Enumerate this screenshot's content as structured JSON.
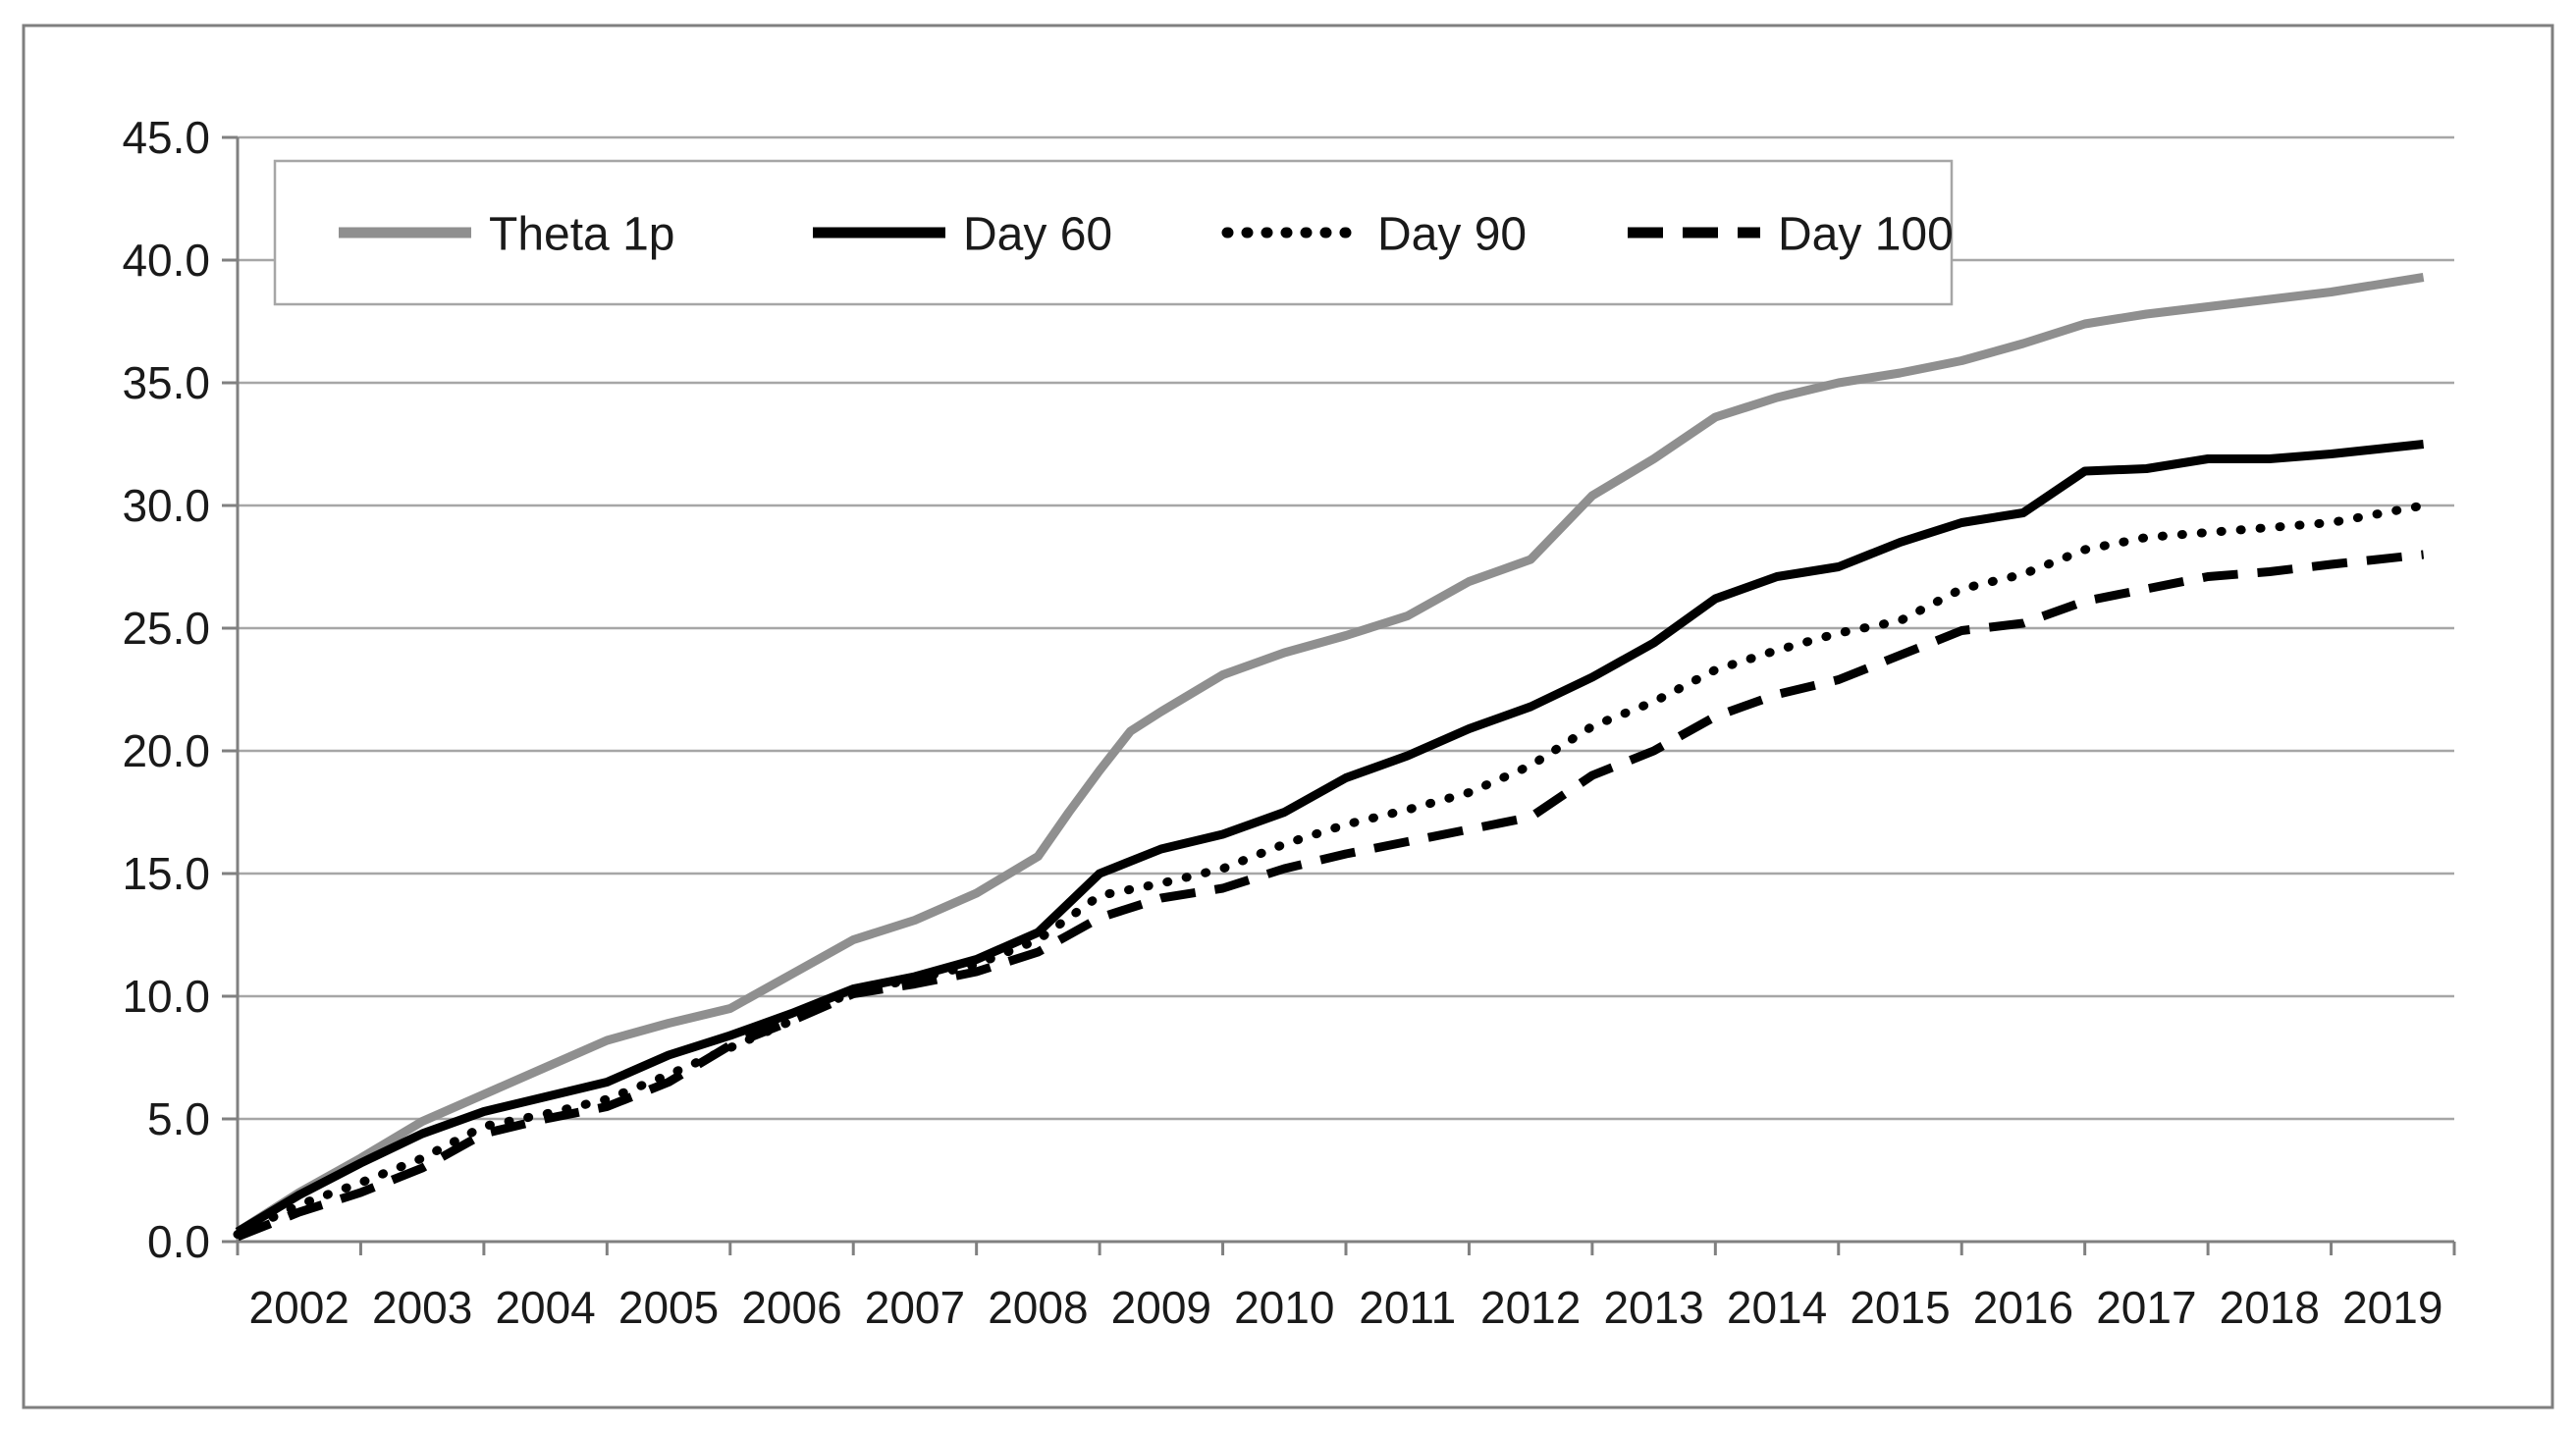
{
  "figure": {
    "background": "#ffffff",
    "border_color": "#7f7f7f"
  },
  "chart_data": {
    "type": "line",
    "title": "",
    "grid": "horizontal",
    "colors": {
      "gridline": "#a6a6a6",
      "axis": "#808080",
      "tick_text": "#1a1a1a",
      "legend_border": "#a6a6a6",
      "series_gray": "#8f8f8f",
      "series_black": "#000000"
    },
    "y_axis": {
      "min": 0,
      "max": 45,
      "step": 5,
      "labels": [
        "0.0",
        "5.0",
        "10.0",
        "15.0",
        "20.0",
        "25.0",
        "30.0",
        "35.0",
        "40.0",
        "45.0"
      ]
    },
    "x_axis": {
      "min": 2002,
      "max": 2020,
      "tick_step": 1,
      "labels": [
        "2002",
        "2003",
        "2004",
        "2005",
        "2006",
        "2007",
        "2008",
        "2009",
        "2010",
        "2011",
        "2012",
        "2013",
        "2014",
        "2015",
        "2016",
        "2017",
        "2018",
        "2019"
      ]
    },
    "legend": {
      "position": "top-left-inside",
      "entries": [
        "Theta 1p",
        "Day 60",
        "Day 90",
        "Day 100"
      ]
    },
    "series": [
      {
        "name": "Theta 1p",
        "color": "#8f8f8f",
        "line_style": "solid",
        "points": [
          [
            2002.0,
            0.4
          ],
          [
            2002.5,
            2.0
          ],
          [
            2003.0,
            3.4
          ],
          [
            2003.5,
            4.9
          ],
          [
            2004.0,
            6.0
          ],
          [
            2004.5,
            7.1
          ],
          [
            2005.0,
            8.2
          ],
          [
            2005.5,
            8.9
          ],
          [
            2006.0,
            9.5
          ],
          [
            2006.5,
            10.9
          ],
          [
            2007.0,
            12.3
          ],
          [
            2007.5,
            13.1
          ],
          [
            2008.0,
            14.2
          ],
          [
            2008.5,
            15.7
          ],
          [
            2008.75,
            17.5
          ],
          [
            2009.0,
            19.2
          ],
          [
            2009.25,
            20.8
          ],
          [
            2009.5,
            21.6
          ],
          [
            2010.0,
            23.1
          ],
          [
            2010.5,
            24.0
          ],
          [
            2011.0,
            24.7
          ],
          [
            2011.5,
            25.5
          ],
          [
            2012.0,
            26.9
          ],
          [
            2012.5,
            27.8
          ],
          [
            2013.0,
            30.4
          ],
          [
            2013.5,
            31.9
          ],
          [
            2014.0,
            33.6
          ],
          [
            2014.5,
            34.4
          ],
          [
            2015.0,
            35.0
          ],
          [
            2015.5,
            35.4
          ],
          [
            2016.0,
            35.9
          ],
          [
            2016.5,
            36.6
          ],
          [
            2017.0,
            37.4
          ],
          [
            2017.5,
            37.8
          ],
          [
            2018.0,
            38.1
          ],
          [
            2018.5,
            38.4
          ],
          [
            2019.0,
            38.7
          ],
          [
            2019.75,
            39.3
          ]
        ]
      },
      {
        "name": "Day 60",
        "color": "#000000",
        "line_style": "solid",
        "points": [
          [
            2002.0,
            0.4
          ],
          [
            2002.5,
            1.9
          ],
          [
            2003.0,
            3.2
          ],
          [
            2003.5,
            4.4
          ],
          [
            2004.0,
            5.3
          ],
          [
            2004.5,
            5.9
          ],
          [
            2005.0,
            6.5
          ],
          [
            2005.5,
            7.6
          ],
          [
            2006.0,
            8.4
          ],
          [
            2006.5,
            9.3
          ],
          [
            2007.0,
            10.3
          ],
          [
            2007.5,
            10.8
          ],
          [
            2008.0,
            11.5
          ],
          [
            2008.5,
            12.6
          ],
          [
            2008.75,
            13.8
          ],
          [
            2009.0,
            15.0
          ],
          [
            2009.5,
            16.0
          ],
          [
            2010.0,
            16.6
          ],
          [
            2010.5,
            17.5
          ],
          [
            2011.0,
            18.9
          ],
          [
            2011.5,
            19.8
          ],
          [
            2012.0,
            20.9
          ],
          [
            2012.5,
            21.8
          ],
          [
            2013.0,
            23.0
          ],
          [
            2013.5,
            24.4
          ],
          [
            2014.0,
            26.2
          ],
          [
            2014.5,
            27.1
          ],
          [
            2015.0,
            27.5
          ],
          [
            2015.5,
            28.5
          ],
          [
            2016.0,
            29.3
          ],
          [
            2016.5,
            29.7
          ],
          [
            2017.0,
            31.4
          ],
          [
            2017.5,
            31.5
          ],
          [
            2018.0,
            31.9
          ],
          [
            2018.5,
            31.9
          ],
          [
            2019.0,
            32.1
          ],
          [
            2019.75,
            32.5
          ]
        ]
      },
      {
        "name": "Day 90",
        "color": "#000000",
        "line_style": "dotted",
        "points": [
          [
            2002.0,
            0.3
          ],
          [
            2002.5,
            1.5
          ],
          [
            2003.0,
            2.4
          ],
          [
            2003.5,
            3.4
          ],
          [
            2004.0,
            4.7
          ],
          [
            2004.5,
            5.2
          ],
          [
            2005.0,
            5.8
          ],
          [
            2005.5,
            6.8
          ],
          [
            2006.0,
            7.9
          ],
          [
            2006.5,
            9.0
          ],
          [
            2007.0,
            10.2
          ],
          [
            2007.5,
            10.7
          ],
          [
            2008.0,
            11.3
          ],
          [
            2008.5,
            12.3
          ],
          [
            2008.75,
            13.2
          ],
          [
            2009.0,
            14.1
          ],
          [
            2009.5,
            14.6
          ],
          [
            2010.0,
            15.2
          ],
          [
            2010.5,
            16.2
          ],
          [
            2011.0,
            17.0
          ],
          [
            2011.5,
            17.6
          ],
          [
            2012.0,
            18.3
          ],
          [
            2012.5,
            19.4
          ],
          [
            2013.0,
            21.0
          ],
          [
            2013.5,
            22.0
          ],
          [
            2014.0,
            23.3
          ],
          [
            2014.5,
            24.1
          ],
          [
            2015.0,
            24.8
          ],
          [
            2015.5,
            25.3
          ],
          [
            2016.0,
            26.6
          ],
          [
            2016.5,
            27.2
          ],
          [
            2017.0,
            28.2
          ],
          [
            2017.5,
            28.7
          ],
          [
            2018.0,
            28.9
          ],
          [
            2018.5,
            29.1
          ],
          [
            2019.0,
            29.3
          ],
          [
            2019.75,
            30.0
          ]
        ]
      },
      {
        "name": "Day 100",
        "color": "#000000",
        "line_style": "dashed",
        "points": [
          [
            2002.0,
            0.2
          ],
          [
            2002.5,
            1.2
          ],
          [
            2003.0,
            2.0
          ],
          [
            2003.5,
            3.0
          ],
          [
            2004.0,
            4.4
          ],
          [
            2004.5,
            5.0
          ],
          [
            2005.0,
            5.5
          ],
          [
            2005.5,
            6.5
          ],
          [
            2006.0,
            8.0
          ],
          [
            2006.5,
            9.0
          ],
          [
            2007.0,
            10.1
          ],
          [
            2007.5,
            10.5
          ],
          [
            2008.0,
            11.0
          ],
          [
            2008.5,
            11.8
          ],
          [
            2008.75,
            12.5
          ],
          [
            2009.0,
            13.2
          ],
          [
            2009.5,
            14.0
          ],
          [
            2010.0,
            14.4
          ],
          [
            2010.5,
            15.2
          ],
          [
            2011.0,
            15.8
          ],
          [
            2011.5,
            16.3
          ],
          [
            2012.0,
            16.8
          ],
          [
            2012.5,
            17.3
          ],
          [
            2013.0,
            19.0
          ],
          [
            2013.5,
            20.0
          ],
          [
            2014.0,
            21.4
          ],
          [
            2014.5,
            22.3
          ],
          [
            2015.0,
            22.9
          ],
          [
            2015.5,
            23.9
          ],
          [
            2016.0,
            24.9
          ],
          [
            2016.5,
            25.2
          ],
          [
            2017.0,
            26.1
          ],
          [
            2017.5,
            26.6
          ],
          [
            2018.0,
            27.1
          ],
          [
            2018.5,
            27.3
          ],
          [
            2019.0,
            27.6
          ],
          [
            2019.75,
            28.0
          ]
        ]
      }
    ]
  }
}
